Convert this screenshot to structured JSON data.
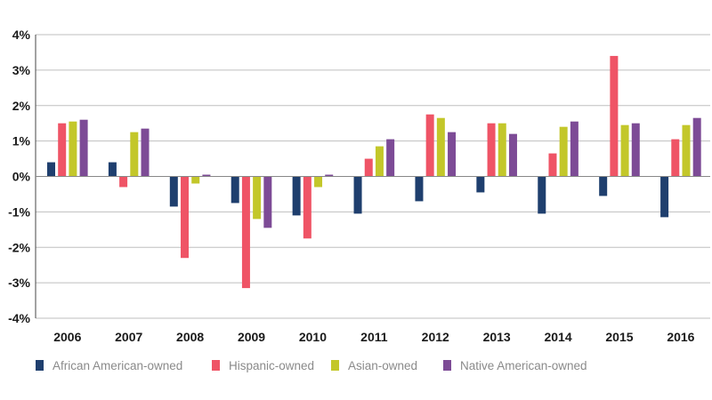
{
  "chart_data": {
    "type": "bar",
    "title": "",
    "xlabel": "",
    "ylabel": "",
    "ylim": [
      -4,
      4
    ],
    "y_ticks": [
      4,
      3,
      2,
      1,
      0,
      -1,
      -2,
      -3,
      -4
    ],
    "y_tick_labels": [
      "4%",
      "3%",
      "2%",
      "1%",
      "0%",
      "-1%",
      "-2%",
      "-3%",
      "-4%"
    ],
    "grid": true,
    "legend_position": "bottom-left",
    "categories": [
      "2006",
      "2007",
      "2008",
      "2009",
      "2010",
      "2011",
      "2012",
      "2013",
      "2014",
      "2015",
      "2016"
    ],
    "series": [
      {
        "name": "African American-owned",
        "color": "#1f3f6e",
        "values": [
          0.4,
          0.4,
          -0.85,
          -0.75,
          -1.1,
          -1.05,
          -0.7,
          -0.45,
          -1.05,
          -0.55,
          -1.15
        ]
      },
      {
        "name": "Hispanic-owned",
        "color": "#ef5466",
        "values": [
          1.5,
          -0.3,
          -2.3,
          -3.15,
          -1.75,
          0.5,
          1.75,
          1.5,
          0.65,
          3.4,
          1.05
        ]
      },
      {
        "name": "Asian-owned",
        "color": "#c3c72a",
        "values": [
          1.55,
          1.25,
          -0.2,
          -1.2,
          -0.3,
          0.85,
          1.65,
          1.5,
          1.4,
          1.45,
          1.45
        ]
      },
      {
        "name": "Native American-owned",
        "color": "#7d4b96",
        "values": [
          1.6,
          1.35,
          0.05,
          -1.45,
          0.05,
          1.05,
          1.25,
          1.2,
          1.55,
          1.5,
          1.65
        ]
      }
    ]
  }
}
